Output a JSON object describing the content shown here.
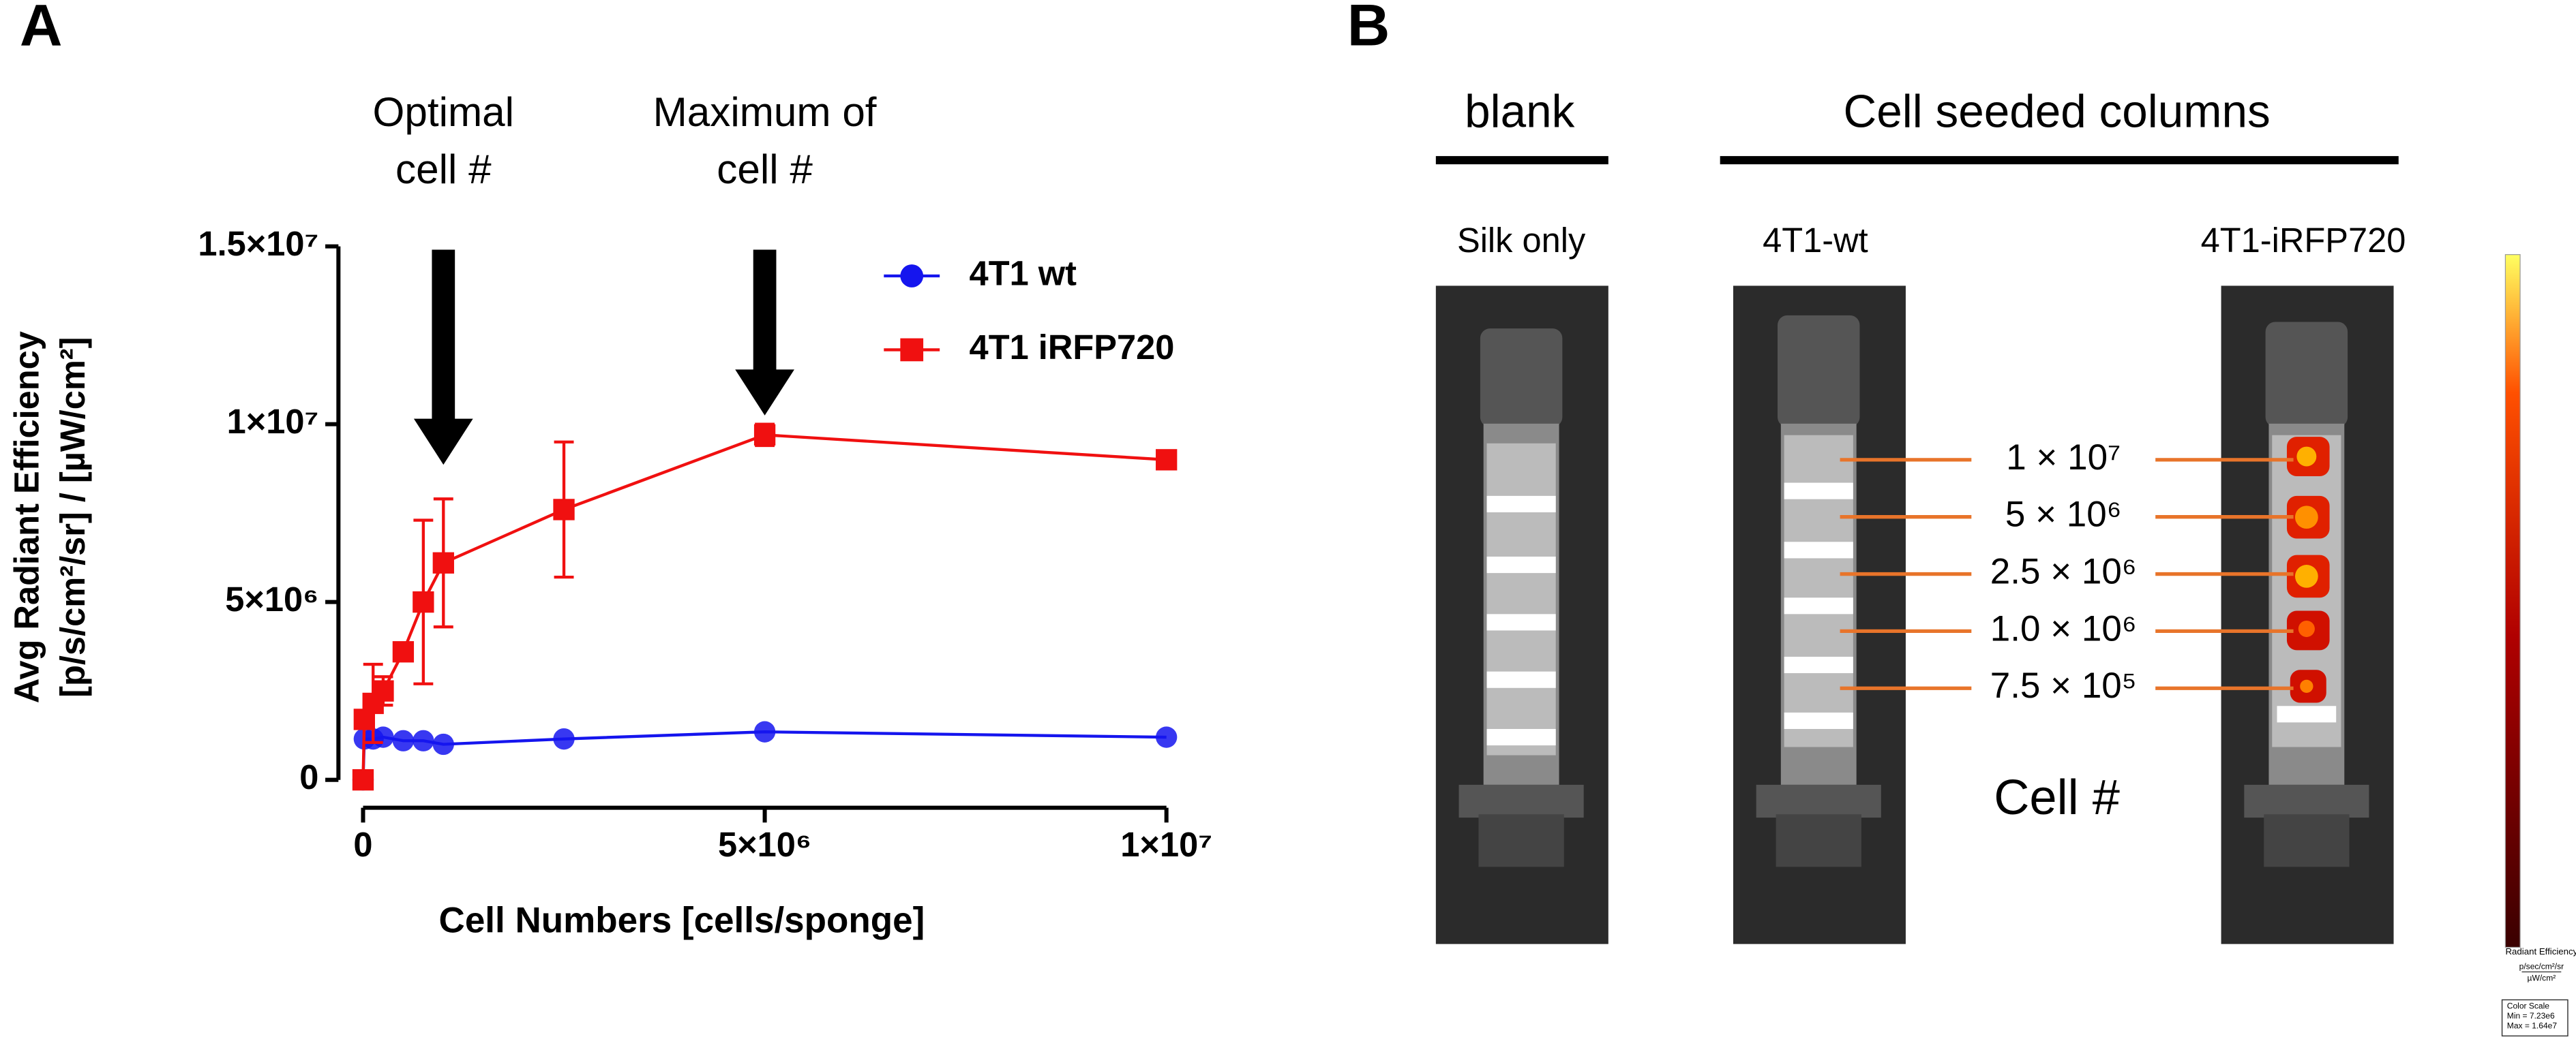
{
  "panel_labels": [
    "A",
    "B"
  ],
  "chart_data": {
    "type": "line",
    "xlabel": "Cell Numbers [cells/sponge]",
    "ylabel": [
      "Avg Radiant Efficiency",
      "[p/s/cm²/sr] / [µW/cm²]"
    ],
    "xlim": [
      0,
      10000000
    ],
    "ylim": [
      0,
      15000000
    ],
    "xticks": [
      0,
      {
        "value": 5000000,
        "label": "5×10⁶"
      },
      {
        "value": 10000000,
        "label": "1×10⁷"
      }
    ],
    "yticks": [
      0,
      {
        "value": 5000000,
        "label": "5×10⁶"
      },
      {
        "value": 10000000,
        "label": "1×10⁷"
      },
      {
        "value": 15000000,
        "label": "1.5×10⁷"
      }
    ],
    "x": [
      0,
      15625,
      125000,
      250000,
      500000,
      750000,
      1000000,
      2500000,
      5000000,
      10000000
    ],
    "series": [
      {
        "name": "4T1 wt",
        "color": "#1515ee",
        "marker": "circle",
        "values": [
          0,
          1150000,
          1150000,
          1200000,
          1100000,
          1100000,
          1000000,
          1150000,
          1350000,
          1200000
        ]
      },
      {
        "name": "4T1 iRFP720",
        "color": "#f01010",
        "marker": "square",
        "values": [
          0,
          1700000,
          2150000,
          2500000,
          3600000,
          5000000,
          6100000,
          7600000,
          9700000,
          9000000
        ],
        "errors": [
          0,
          0,
          1100000,
          400000,
          0,
          2300000,
          1800000,
          1900000,
          300000,
          0
        ]
      }
    ],
    "annotations": [
      {
        "text": [
          "Optimal",
          "cell #"
        ],
        "x": 1000000
      },
      {
        "text": [
          "Maximum of",
          "cell #"
        ],
        "x": 5000000
      }
    ],
    "legend": "upper right"
  },
  "panel_b": {
    "headers": [
      "blank",
      "Cell seeded columns"
    ],
    "columns": [
      "Silk only",
      "4T1-wt",
      "4T1-iRFP720"
    ],
    "labels": [
      "1 × 10⁷",
      "5 × 10⁶",
      "2.5 × 10⁶",
      "1.0 × 10⁶",
      "7.5 × 10⁵"
    ],
    "footer": "Cell #",
    "colorbar": {
      "title": "Radiant Efficiency",
      "units": [
        "p/sec/cm²/sr",
        "µW/cm²"
      ],
      "box": [
        "Color Scale",
        "Min = 7.23e6",
        "Max = 1.64e7"
      ]
    }
  }
}
